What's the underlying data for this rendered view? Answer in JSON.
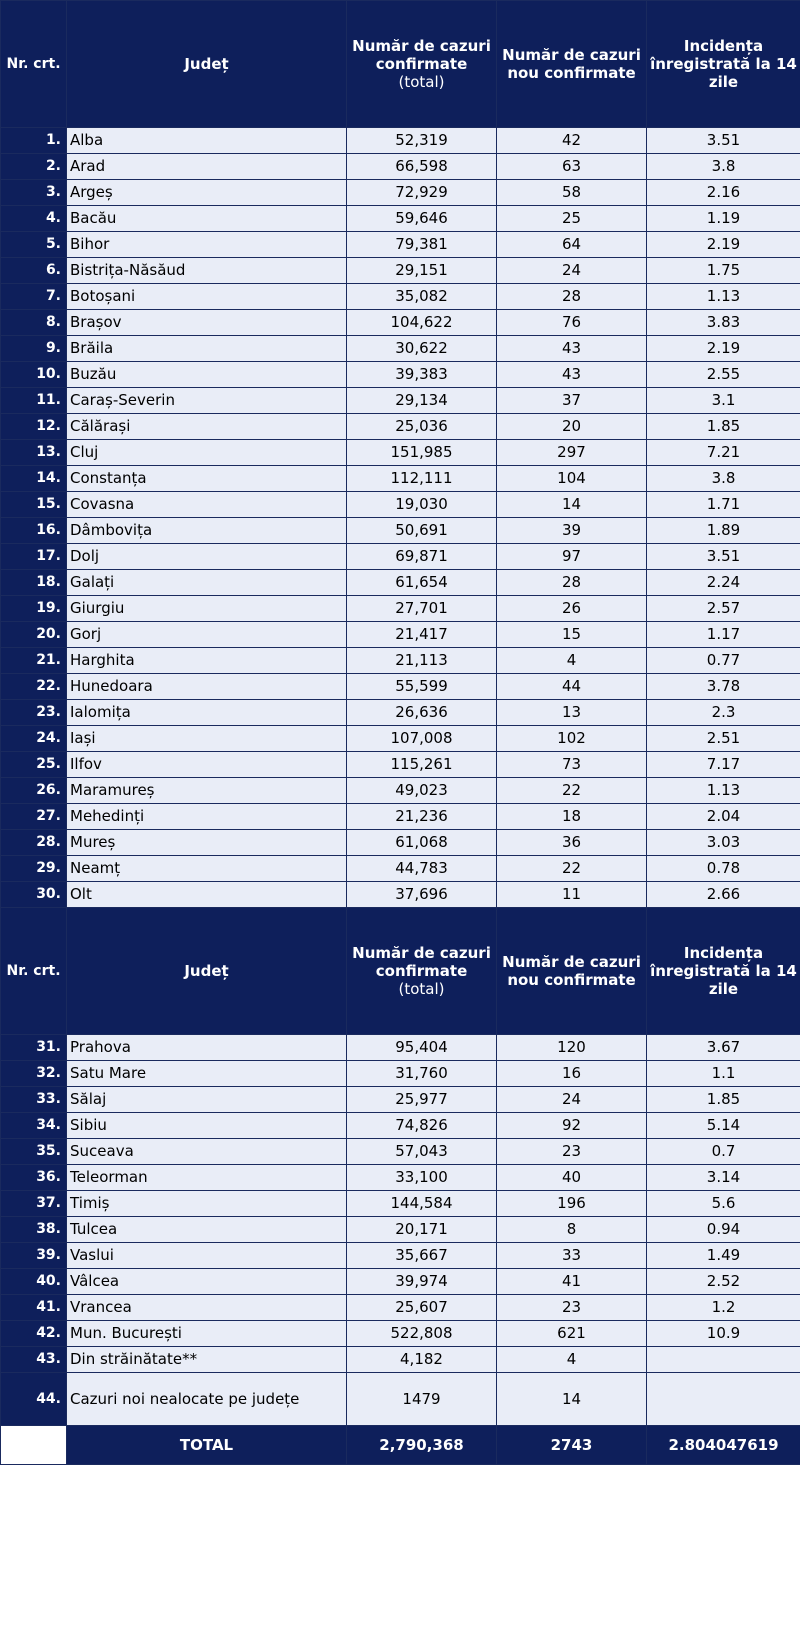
{
  "header": {
    "nr": "Nr. crt.",
    "judet": "Județ",
    "total_line1": "Număr de cazuri confirmate",
    "total_line2": "(total)",
    "new": "Număr de cazuri nou confirmate",
    "incidence": "Incidența înregistrată la 14 zile"
  },
  "rows": [
    {
      "nr": "1.",
      "name": "Alba",
      "total": "52,319",
      "new": "42",
      "inc": "3.51"
    },
    {
      "nr": "2.",
      "name": "Arad",
      "total": "66,598",
      "new": "63",
      "inc": "3.8"
    },
    {
      "nr": "3.",
      "name": "Argeș",
      "total": "72,929",
      "new": "58",
      "inc": "2.16"
    },
    {
      "nr": "4.",
      "name": "Bacău",
      "total": "59,646",
      "new": "25",
      "inc": "1.19"
    },
    {
      "nr": "5.",
      "name": "Bihor",
      "total": "79,381",
      "new": "64",
      "inc": "2.19"
    },
    {
      "nr": "6.",
      "name": "Bistrița-Năsăud",
      "total": "29,151",
      "new": "24",
      "inc": "1.75"
    },
    {
      "nr": "7.",
      "name": "Botoșani",
      "total": "35,082",
      "new": "28",
      "inc": "1.13"
    },
    {
      "nr": "8.",
      "name": "Brașov",
      "total": "104,622",
      "new": "76",
      "inc": "3.83"
    },
    {
      "nr": "9.",
      "name": "Brăila",
      "total": "30,622",
      "new": "43",
      "inc": "2.19"
    },
    {
      "nr": "10.",
      "name": "Buzău",
      "total": "39,383",
      "new": "43",
      "inc": "2.55"
    },
    {
      "nr": "11.",
      "name": "Caraș-Severin",
      "total": "29,134",
      "new": "37",
      "inc": "3.1"
    },
    {
      "nr": "12.",
      "name": "Călărași",
      "total": "25,036",
      "new": "20",
      "inc": "1.85"
    },
    {
      "nr": "13.",
      "name": "Cluj",
      "total": "151,985",
      "new": "297",
      "inc": "7.21"
    },
    {
      "nr": "14.",
      "name": "Constanța",
      "total": "112,111",
      "new": "104",
      "inc": "3.8"
    },
    {
      "nr": "15.",
      "name": "Covasna",
      "total": "19,030",
      "new": "14",
      "inc": "1.71"
    },
    {
      "nr": "16.",
      "name": "Dâmbovița",
      "total": "50,691",
      "new": "39",
      "inc": "1.89"
    },
    {
      "nr": "17.",
      "name": "Dolj",
      "total": "69,871",
      "new": "97",
      "inc": "3.51"
    },
    {
      "nr": "18.",
      "name": "Galați",
      "total": "61,654",
      "new": "28",
      "inc": "2.24"
    },
    {
      "nr": "19.",
      "name": "Giurgiu",
      "total": "27,701",
      "new": "26",
      "inc": "2.57"
    },
    {
      "nr": "20.",
      "name": "Gorj",
      "total": "21,417",
      "new": "15",
      "inc": "1.17"
    },
    {
      "nr": "21.",
      "name": "Harghita",
      "total": "21,113",
      "new": "4",
      "inc": "0.77"
    },
    {
      "nr": "22.",
      "name": "Hunedoara",
      "total": "55,599",
      "new": "44",
      "inc": "3.78"
    },
    {
      "nr": "23.",
      "name": "Ialomița",
      "total": "26,636",
      "new": "13",
      "inc": "2.3"
    },
    {
      "nr": "24.",
      "name": "Iași",
      "total": "107,008",
      "new": "102",
      "inc": "2.51"
    },
    {
      "nr": "25.",
      "name": "Ilfov",
      "total": "115,261",
      "new": "73",
      "inc": "7.17"
    },
    {
      "nr": "26.",
      "name": "Maramureș",
      "total": "49,023",
      "new": "22",
      "inc": "1.13"
    },
    {
      "nr": "27.",
      "name": "Mehedinți",
      "total": "21,236",
      "new": "18",
      "inc": "2.04"
    },
    {
      "nr": "28.",
      "name": "Mureș",
      "total": "61,068",
      "new": "36",
      "inc": "3.03"
    },
    {
      "nr": "29.",
      "name": "Neamț",
      "total": "44,783",
      "new": "22",
      "inc": "0.78"
    },
    {
      "nr": "30.",
      "name": "Olt",
      "total": "37,696",
      "new": "11",
      "inc": "2.66"
    }
  ],
  "rows2": [
    {
      "nr": "31.",
      "name": "Prahova",
      "total": "95,404",
      "new": "120",
      "inc": "3.67"
    },
    {
      "nr": "32.",
      "name": "Satu Mare",
      "total": "31,760",
      "new": "16",
      "inc": "1.1"
    },
    {
      "nr": "33.",
      "name": "Sălaj",
      "total": "25,977",
      "new": "24",
      "inc": "1.85"
    },
    {
      "nr": "34.",
      "name": "Sibiu",
      "total": "74,826",
      "new": "92",
      "inc": "5.14"
    },
    {
      "nr": "35.",
      "name": "Suceava",
      "total": "57,043",
      "new": "23",
      "inc": "0.7"
    },
    {
      "nr": "36.",
      "name": "Teleorman",
      "total": "33,100",
      "new": "40",
      "inc": "3.14"
    },
    {
      "nr": "37.",
      "name": "Timiș",
      "total": "144,584",
      "new": "196",
      "inc": "5.6"
    },
    {
      "nr": "38.",
      "name": "Tulcea",
      "total": "20,171",
      "new": "8",
      "inc": "0.94"
    },
    {
      "nr": "39.",
      "name": "Vaslui",
      "total": "35,667",
      "new": "33",
      "inc": "1.49"
    },
    {
      "nr": "40.",
      "name": "Vâlcea",
      "total": "39,974",
      "new": "41",
      "inc": "2.52"
    },
    {
      "nr": "41.",
      "name": "Vrancea",
      "total": "25,607",
      "new": "23",
      "inc": "1.2"
    },
    {
      "nr": "42.",
      "name": "Mun. București",
      "total": "522,808",
      "new": "621",
      "inc": "10.9"
    },
    {
      "nr": "43.",
      "name": "Din străinătate**",
      "total": "4,182",
      "new": "4",
      "inc": ""
    },
    {
      "nr": "44.",
      "name": "Cazuri noi nealocate pe județe",
      "total": "1479",
      "new": "14",
      "inc": ""
    }
  ],
  "total": {
    "label": "TOTAL",
    "total": "2,790,368",
    "new": "2743",
    "inc": "2.804047619"
  }
}
